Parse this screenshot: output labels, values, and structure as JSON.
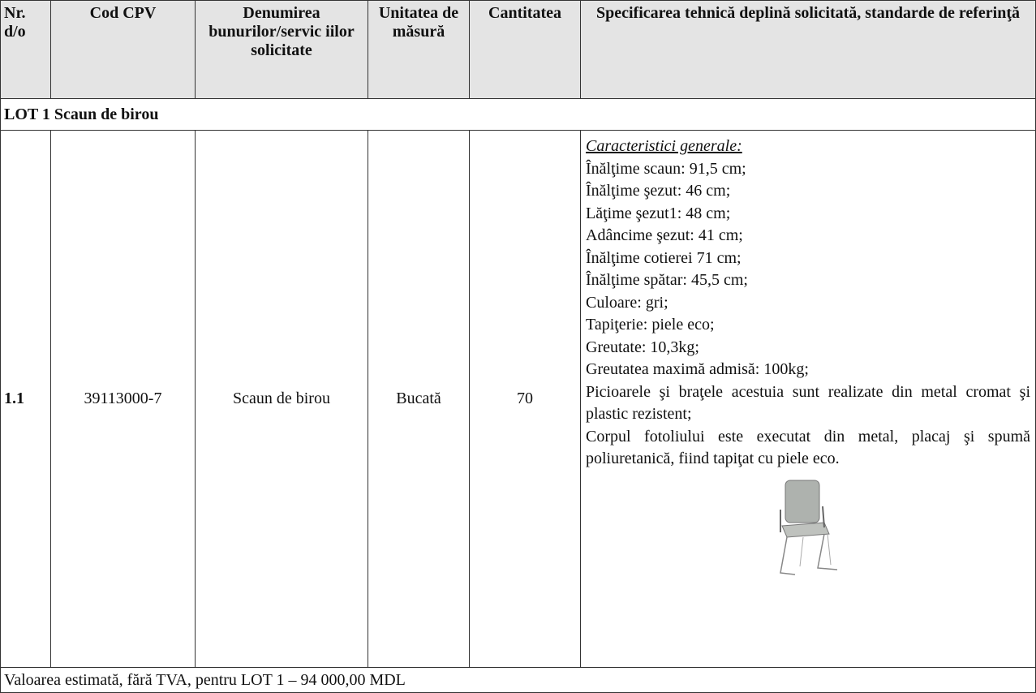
{
  "table": {
    "header": [
      "Nr. d/o",
      "Cod CPV",
      "Denumirea bunurilor/servic iilor solicitate",
      "Unitatea de măsură",
      "Cantitatea",
      "Specificarea tehnică deplină solicitată, standarde de referinţă"
    ],
    "lot": "LOT 1 Scaun de birou",
    "row": [
      "1.1",
      "39113000-7",
      "Scaun de birou",
      "Bucată",
      "70"
    ],
    "spec_heading": "Caracteristici generale:",
    "spec_lines": [
      "Înălţime scaun: 91,5 cm;",
      "Înălţime şezut: 46 cm;",
      "Lăţime şezut1: 48 cm;",
      "Adâncime şezut: 41 cm;",
      "Înălţime cotierei 71 cm;",
      "Înălţime spătar: 45,5 cm;",
      "Culoare: gri;",
      "Tapiţerie: piele eco;",
      "Greutate: 10,3kg;",
      "Greutatea maximă admisă: 100kg;",
      "Picioarele şi braţele acestuia sunt realizate din metal cromat şi plastic rezistent;",
      "Corpul fotoliului este executat din metal, placaj şi spumă poliuretanică, fiind tapiţat cu piele eco."
    ],
    "footer": "Valoarea estimată, fără TVA, pentru LOT 1 – 94 000,00 MDL"
  }
}
